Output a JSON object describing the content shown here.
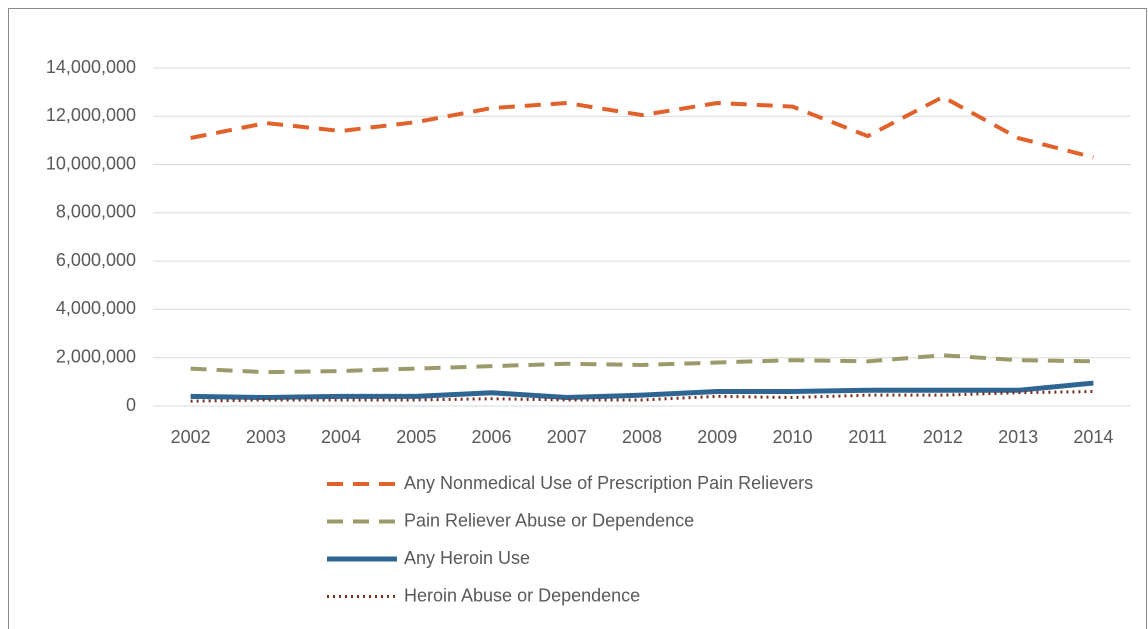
{
  "chart_data": {
    "type": "line",
    "categories": [
      "2002",
      "2003",
      "2004",
      "2005",
      "2006",
      "2007",
      "2008",
      "2009",
      "2010",
      "2011",
      "2012",
      "2013",
      "2014"
    ],
    "series": [
      {
        "name": "Any Nonmedical Use of Prescription Pain Relievers",
        "color": "#e0622a",
        "style": "dashed",
        "values": [
          11100000,
          11720000,
          11390000,
          11760000,
          12340000,
          12550000,
          12050000,
          12550000,
          12400000,
          11180000,
          12800000,
          11100000,
          10300000
        ]
      },
      {
        "name": "Pain Reliever Abuse or Dependence",
        "color": "#9c9a6a",
        "style": "dashed",
        "values": [
          1550000,
          1400000,
          1450000,
          1550000,
          1650000,
          1750000,
          1700000,
          1800000,
          1900000,
          1850000,
          2100000,
          1900000,
          1850000
        ]
      },
      {
        "name": "Any Heroin Use",
        "color": "#2e6592",
        "style": "solid",
        "values": [
          400000,
          350000,
          400000,
          400000,
          550000,
          350000,
          450000,
          600000,
          600000,
          650000,
          650000,
          650000,
          950000
        ]
      },
      {
        "name": "Heroin Abuse or Dependence",
        "color": "#7b2d1e",
        "style": "dotted",
        "values": [
          200000,
          250000,
          250000,
          250000,
          300000,
          250000,
          250000,
          400000,
          350000,
          450000,
          450000,
          550000,
          600000
        ]
      }
    ],
    "ylim": [
      0,
      14000000
    ],
    "yticks": [
      0,
      {
        "value": 2000000,
        "label": "2,000,000"
      },
      {
        "value": 4000000,
        "label": "4,000,000"
      },
      {
        "value": 6000000,
        "label": "6,000,000"
      },
      {
        "value": 8000000,
        "label": "8,000,000"
      },
      {
        "value": 10000000,
        "label": "10,000,000"
      },
      {
        "value": 12000000,
        "label": "12,000,000"
      },
      {
        "value": 14000000,
        "label": "14,000,000"
      }
    ],
    "grid": true,
    "legend": "bottom"
  }
}
